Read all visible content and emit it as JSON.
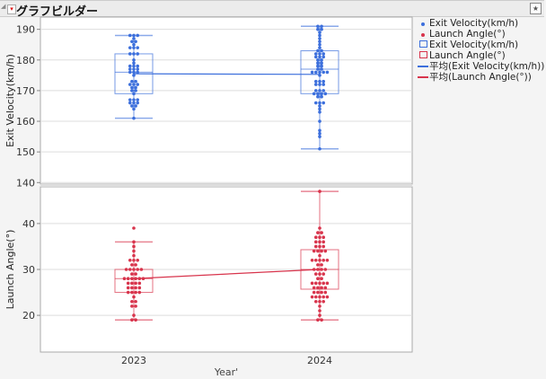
{
  "window": {
    "title": "グラフビルダー"
  },
  "colors": {
    "ev": "#3c6fdc",
    "la": "#d8344c"
  },
  "legend": [
    {
      "label": "Exit Velocity(km/h)",
      "kind": "dot",
      "color": "#3c6fdc"
    },
    {
      "label": "Launch Angle(°)",
      "kind": "dot",
      "color": "#d8344c"
    },
    {
      "label": "Exit Velocity(km/h)",
      "kind": "box",
      "color": "#3c6fdc"
    },
    {
      "label": "Launch Angle(°)",
      "kind": "box",
      "color": "#d8344c"
    },
    {
      "label": "平均(Exit Velocity(km/h))",
      "kind": "line",
      "color": "#3c6fdc"
    },
    {
      "label": "平均(Launch Angle(°))",
      "kind": "line",
      "color": "#d8344c"
    }
  ],
  "chart_data": [
    {
      "type": "box",
      "title": "",
      "xlabel": "Year'",
      "ylabel": "Exit Velocity(km/h)",
      "categories": [
        "2023",
        "2024"
      ],
      "yticks": [
        140,
        150,
        160,
        170,
        180,
        190
      ],
      "ylim": [
        139.5,
        194
      ],
      "boxes": [
        {
          "min": 161,
          "q1": 169,
          "median": 176,
          "q3": 182,
          "max": 188
        },
        {
          "min": 151,
          "q1": 169,
          "median": 177,
          "q3": 183,
          "max": 191
        }
      ],
      "means": [
        175.5,
        175.3
      ],
      "points": [
        [
          [
            188,
            3
          ],
          [
            187,
            1
          ],
          [
            186,
            2
          ],
          [
            185,
            1
          ],
          [
            184,
            3
          ],
          [
            182,
            3
          ],
          [
            180,
            1
          ],
          [
            179,
            1
          ],
          [
            178,
            3
          ],
          [
            177,
            3
          ],
          [
            176,
            3
          ],
          [
            175,
            1
          ],
          [
            173,
            2
          ],
          [
            172,
            3
          ],
          [
            171,
            2
          ],
          [
            170,
            2
          ],
          [
            169,
            1
          ],
          [
            167,
            3
          ],
          [
            166,
            3
          ],
          [
            165,
            2
          ],
          [
            164,
            1
          ],
          [
            161,
            1
          ]
        ],
        [
          [
            191,
            2
          ],
          [
            190,
            2
          ],
          [
            189,
            1
          ],
          [
            188,
            1
          ],
          [
            187,
            1
          ],
          [
            186,
            1
          ],
          [
            185,
            1
          ],
          [
            184,
            1
          ],
          [
            183,
            2
          ],
          [
            182,
            3
          ],
          [
            181,
            3
          ],
          [
            180,
            2
          ],
          [
            179,
            2
          ],
          [
            178,
            2
          ],
          [
            177,
            2
          ],
          [
            176,
            5
          ],
          [
            175,
            1
          ],
          [
            173,
            3
          ],
          [
            172,
            3
          ],
          [
            170,
            3
          ],
          [
            169,
            4
          ],
          [
            168,
            2
          ],
          [
            166,
            3
          ],
          [
            165,
            1
          ],
          [
            164,
            1
          ],
          [
            163,
            1
          ],
          [
            160,
            1
          ],
          [
            157,
            1
          ],
          [
            156,
            1
          ],
          [
            155,
            1
          ],
          [
            151,
            1
          ]
        ]
      ]
    },
    {
      "type": "box",
      "title": "",
      "xlabel": "Year'",
      "ylabel": "Launch Angle(°)",
      "categories": [
        "2023",
        "2024"
      ],
      "yticks": [
        20,
        30,
        40
      ],
      "ylim": [
        12,
        48
      ],
      "boxes": [
        {
          "min": 19,
          "q1": 25,
          "median": 28,
          "q3": 30,
          "max": 36
        },
        {
          "min": 19,
          "q1": 25.7,
          "median": 30,
          "q3": 34.3,
          "max": 47
        }
      ],
      "means": [
        28,
        30
      ],
      "points": [
        [
          [
            39,
            1
          ],
          [
            36,
            1
          ],
          [
            35,
            1
          ],
          [
            34,
            1
          ],
          [
            33,
            1
          ],
          [
            32,
            3
          ],
          [
            31,
            2
          ],
          [
            30,
            5
          ],
          [
            29,
            2
          ],
          [
            28,
            6
          ],
          [
            27,
            4
          ],
          [
            26,
            4
          ],
          [
            25,
            4
          ],
          [
            24,
            1
          ],
          [
            23,
            2
          ],
          [
            22,
            2
          ],
          [
            20,
            1
          ],
          [
            19,
            2
          ]
        ],
        [
          [
            47,
            1
          ],
          [
            39,
            1
          ],
          [
            38,
            2
          ],
          [
            37,
            3
          ],
          [
            36,
            3
          ],
          [
            35,
            3
          ],
          [
            34,
            4
          ],
          [
            33,
            1
          ],
          [
            32,
            5
          ],
          [
            31,
            2
          ],
          [
            30,
            4
          ],
          [
            29,
            3
          ],
          [
            28,
            2
          ],
          [
            27,
            5
          ],
          [
            26,
            4
          ],
          [
            25,
            4
          ],
          [
            24,
            5
          ],
          [
            23,
            3
          ],
          [
            22,
            1
          ],
          [
            21,
            1
          ],
          [
            20,
            1
          ],
          [
            19,
            2
          ]
        ]
      ]
    }
  ]
}
